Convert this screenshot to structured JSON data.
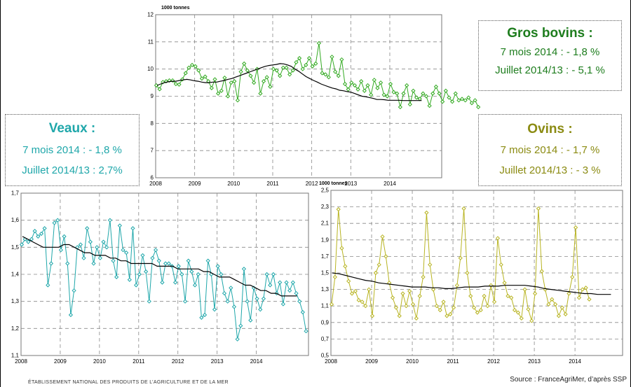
{
  "chart_data": [
    {
      "id": "bovins",
      "type": "line",
      "ylabel": "1000 tonnes",
      "ylim": [
        6,
        12
      ],
      "yticks": [
        "6",
        "7",
        "8",
        "9",
        "10",
        "11",
        "12"
      ],
      "xticks": [
        "2008",
        "2009",
        "2010",
        "2011",
        "2012",
        "2013",
        "2014"
      ],
      "grid": true,
      "colors": {
        "series": "#33aa22",
        "trend": "#000000"
      },
      "series": [
        {
          "values": [
            9.4,
            9.26,
            9.52,
            9.55,
            9.58,
            9.58,
            9.45,
            9.43,
            9.62,
            9.85,
            10.05,
            10.15,
            10.1,
            9.95,
            9.65,
            9.72,
            9.55,
            9.3,
            9.62,
            9.1,
            9.2,
            9.68,
            9.0,
            9.5,
            9.55,
            8.85,
            9.9,
            10.2,
            9.95,
            9.75,
            9.5,
            10.0,
            9.1,
            9.55,
            9.7,
            9.35,
            10.0,
            9.95,
            9.75,
            10.05,
            10.05,
            9.8,
            9.95,
            10.25,
            10.4,
            10.0,
            10.15,
            10.4,
            10.1,
            10.2,
            10.95,
            9.85,
            9.8,
            9.7,
            10.45,
            9.9,
            9.75,
            10.35,
            9.45,
            9.25,
            9.5,
            9.4,
            9.25,
            9.55,
            9.2,
            9.4,
            9.05,
            9.6,
            9.3,
            9.5,
            9.05,
            9.0,
            9.45,
            9.15,
            9.1,
            8.6,
            9.1,
            9.4,
            8.7,
            9.2,
            8.95,
            8.9,
            9.1,
            9.0,
            8.65,
            9.1,
            9.35,
            9.1,
            8.8,
            9.2,
            8.95,
            8.8,
            9.1,
            8.85,
            8.9,
            8.85,
            8.95,
            8.75,
            8.85,
            8.6
          ]
        },
        {
          "values": [
            9.4,
            9.45,
            9.5,
            9.53,
            9.55,
            9.55,
            9.58,
            9.6,
            9.62,
            9.6,
            9.57,
            9.55,
            9.52,
            9.5,
            9.5,
            9.52,
            9.52,
            9.55,
            9.58,
            9.62,
            9.65,
            9.7,
            9.75,
            9.8,
            9.85,
            9.9,
            9.95,
            10.0,
            10.05,
            10.1,
            10.13,
            10.15,
            10.17,
            10.2,
            10.19,
            10.15,
            10.1,
            10.0,
            9.92,
            9.82,
            9.72,
            9.65,
            9.58,
            9.52,
            9.45,
            9.4,
            9.35,
            9.3,
            9.27,
            9.22,
            9.2,
            9.17,
            9.15,
            9.1,
            9.05,
            9.0,
            8.98,
            8.95,
            8.92,
            8.88,
            8.88,
            8.87,
            8.85,
            8.85,
            8.85,
            8.85,
            8.84,
            8.84,
            8.84,
            8.84,
            8.84,
            8.84
          ]
        }
      ]
    },
    {
      "id": "veaux",
      "type": "line",
      "ylim": [
        1.1,
        1.7
      ],
      "yticks": [
        "1,1",
        "1,2",
        "1,3",
        "1,4",
        "1,5",
        "1,6",
        "1,7"
      ],
      "xticks": [
        "2008",
        "2009",
        "2010",
        "2011",
        "2012",
        "2013",
        "2014"
      ],
      "grid": true,
      "colors": {
        "series": "#1fa7aa",
        "trend": "#000000"
      },
      "series": [
        {
          "values": [
            1.51,
            1.53,
            1.52,
            1.53,
            1.56,
            1.54,
            1.55,
            1.57,
            1.36,
            1.44,
            1.59,
            1.6,
            1.49,
            1.54,
            1.44,
            1.25,
            1.34,
            1.5,
            1.51,
            1.46,
            1.57,
            1.52,
            1.44,
            1.5,
            1.46,
            1.52,
            1.5,
            1.6,
            1.45,
            1.39,
            1.58,
            1.49,
            1.48,
            1.38,
            1.57,
            1.36,
            1.4,
            1.47,
            1.41,
            1.3,
            1.46,
            1.49,
            1.45,
            1.37,
            1.44,
            1.44,
            1.43,
            1.37,
            1.43,
            1.4,
            1.3,
            1.45,
            1.41,
            1.36,
            1.4,
            1.24,
            1.25,
            1.45,
            1.4,
            1.27,
            1.43,
            1.4,
            1.33,
            1.3,
            1.35,
            1.28,
            1.16,
            1.21,
            1.42,
            1.3,
            1.23,
            1.35,
            1.31,
            1.27,
            1.31,
            1.4,
            1.36,
            1.4,
            1.33,
            1.37,
            1.29,
            1.37,
            1.34,
            1.37,
            1.33,
            1.3,
            1.26,
            1.19
          ]
        },
        {
          "values": [
            1.54,
            1.53,
            1.52,
            1.51,
            1.5,
            1.5,
            1.5,
            1.5,
            1.51,
            1.51,
            1.5,
            1.49,
            1.48,
            1.48,
            1.47,
            1.47,
            1.47,
            1.46,
            1.46,
            1.45,
            1.45,
            1.44,
            1.44,
            1.44,
            1.44,
            1.44,
            1.43,
            1.43,
            1.43,
            1.43,
            1.42,
            1.42,
            1.42,
            1.42,
            1.42,
            1.41,
            1.41,
            1.4,
            1.39,
            1.39,
            1.39,
            1.38,
            1.37,
            1.36,
            1.36,
            1.35,
            1.34,
            1.34,
            1.33,
            1.33,
            1.32,
            1.32,
            1.32,
            1.32
          ]
        }
      ]
    },
    {
      "id": "ovins",
      "type": "line",
      "ylabel": "1000 tonnes",
      "ylim": [
        0.5,
        2.5
      ],
      "yticks": [
        "0,5",
        "0,7",
        "0,9",
        "1,1",
        "1,3",
        "1,5",
        "1,7",
        "1,9",
        "2,1",
        "2,3",
        "2,5"
      ],
      "xticks": [
        "2008",
        "2009",
        "2010",
        "2011",
        "2012",
        "2013",
        "2014"
      ],
      "grid": true,
      "colors": {
        "series": "#b8b422",
        "trend": "#000000"
      },
      "series": [
        {
          "values": [
            1.12,
            1.45,
            2.27,
            1.8,
            1.58,
            1.4,
            1.25,
            1.28,
            1.17,
            1.15,
            1.1,
            1.3,
            0.98,
            1.5,
            1.6,
            1.94,
            1.7,
            1.38,
            1.2,
            1.08,
            0.98,
            1.25,
            1.1,
            1.28,
            1.12,
            0.95,
            1.22,
            1.45,
            2.23,
            1.6,
            1.3,
            1.1,
            1.05,
            1.15,
            0.98,
            1.0,
            1.08,
            1.35,
            1.68,
            2.28,
            1.5,
            1.22,
            1.08,
            1.02,
            1.05,
            1.22,
            1.1,
            1.35,
            1.15,
            1.92,
            1.6,
            1.38,
            1.22,
            1.2,
            1.05,
            1.02,
            0.95,
            1.3,
            1.06,
            0.92,
            1.25,
            2.28,
            1.52,
            1.3,
            1.12,
            1.18,
            1.12,
            0.98,
            1.08,
            1.0,
            1.25,
            1.45,
            2.05,
            1.2,
            1.3,
            1.32,
            1.18
          ]
        },
        {
          "values": [
            1.5,
            1.49,
            1.47,
            1.45,
            1.43,
            1.41,
            1.4,
            1.38,
            1.37,
            1.36,
            1.35,
            1.34,
            1.33,
            1.33,
            1.33,
            1.32,
            1.32,
            1.31,
            1.31,
            1.32,
            1.33,
            1.33,
            1.33,
            1.34,
            1.34,
            1.34,
            1.35,
            1.35,
            1.35,
            1.35,
            1.34,
            1.33,
            1.31,
            1.3,
            1.29,
            1.28,
            1.27,
            1.26,
            1.25,
            1.25,
            1.24,
            1.24,
            1.24
          ]
        }
      ]
    }
  ],
  "boxes": {
    "bovins": {
      "title": "Gros bovins :",
      "line1": "7 mois 2014 :    - 1,8 %",
      "line2": "Juillet 2014/13 : - 5,1 %"
    },
    "veaux": {
      "title": "Veaux :",
      "line1": "7 mois 2014 : - 1,8 %",
      "line2": "Juillet 2014/13 : 2,7%"
    },
    "ovins": {
      "title": "Ovins :",
      "line1": "7 mois 2014 : - 1,7 %",
      "line2": "Juillet 2014/13 : - 3 %"
    }
  },
  "footer": {
    "left": "ÉTABLISSEMENT NATIONAL DES PRODUITS DE L’AGRICULTURE ET DE LA MER",
    "right": "Source : FranceAgriMer, d’après SSP"
  }
}
